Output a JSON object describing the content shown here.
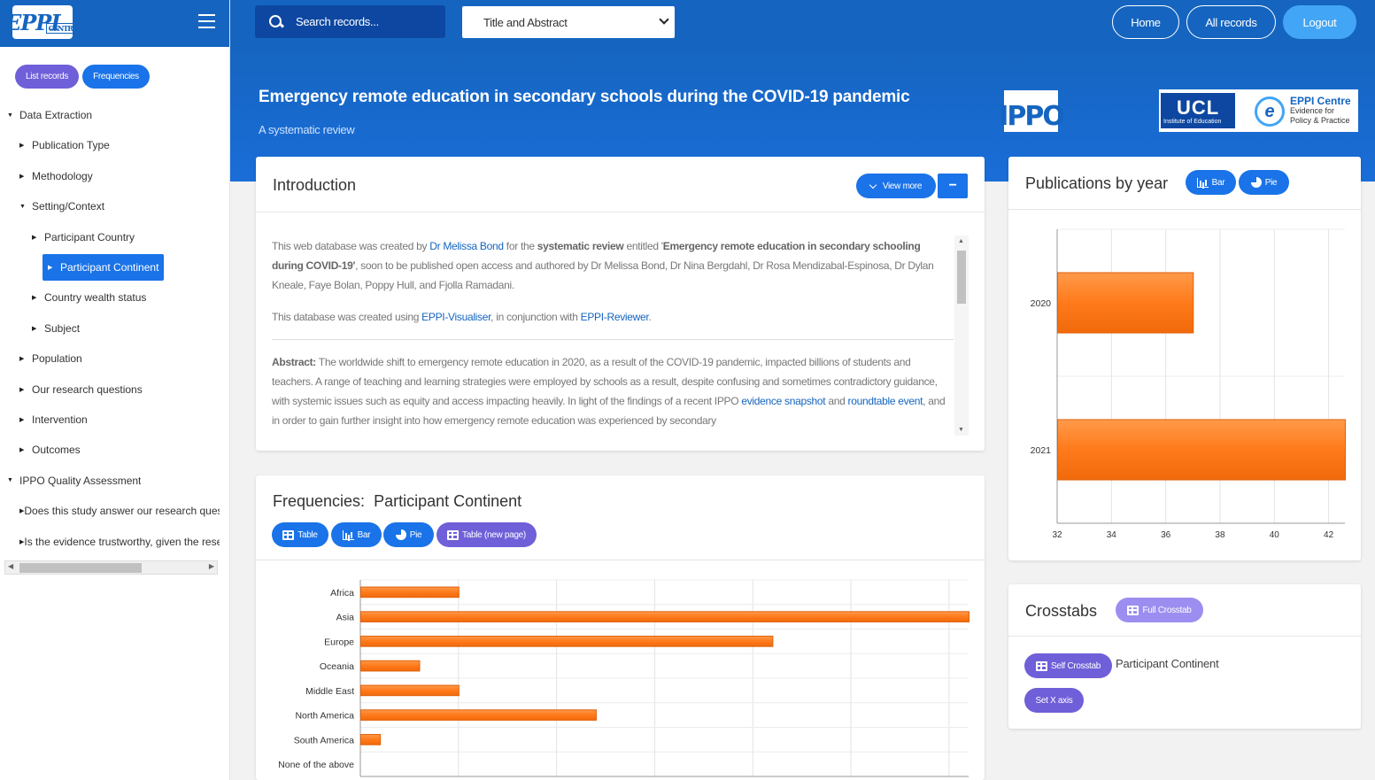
{
  "sidebar": {
    "logo_text": "EPPI",
    "logo_sub": "CENTRE",
    "buttons": {
      "list_records": "List records",
      "frequencies": "Frequencies"
    },
    "tree": [
      {
        "label": "Data Extraction",
        "level": 0
      },
      {
        "label": "Publication Type",
        "level": 1
      },
      {
        "label": "Methodology",
        "level": 1
      },
      {
        "label": "Setting/Context",
        "level": 1
      },
      {
        "label": "Participant Country",
        "level": 2
      },
      {
        "label": "Participant Continent",
        "level": 2,
        "selected": true
      },
      {
        "label": "Country wealth status",
        "level": 2
      },
      {
        "label": "Subject",
        "level": 2
      },
      {
        "label": "Population",
        "level": 1
      },
      {
        "label": "Our research questions",
        "level": 1
      },
      {
        "label": "Intervention",
        "level": 1
      },
      {
        "label": "Outcomes",
        "level": 1
      },
      {
        "label": "IPPO Quality Assessment",
        "level": 0
      },
      {
        "label": "Does this study answer our research questions?",
        "level": 1
      },
      {
        "label": "Is the evidence trustworthy, given the research design?",
        "level": 1
      }
    ]
  },
  "topbar": {
    "search_placeholder": "Search records...",
    "search_scope": "Title and Abstract",
    "nav": {
      "home": "Home",
      "all_records": "All records",
      "logout": "Logout"
    }
  },
  "hero": {
    "title": "Emergency remote education in secondary schools during the COVID-19 pandemic",
    "subtitle": "A systematic review",
    "ippo_logo": "IPPO",
    "ucl_logo": "UCL",
    "ucl_sub": "Institute of Education",
    "eppi_logo": "EPPI Centre",
    "eppi_sub1": "Evidence for",
    "eppi_sub2": "Policy & Practice"
  },
  "intro": {
    "title": "Introduction",
    "view_more": "View more",
    "collapse": "−",
    "p1_a": "This web database was created by ",
    "p1_link": "Dr Melissa Bond",
    "p1_b": " for the ",
    "p1_bold": "systematic review",
    "p1_c": " entitled '",
    "p1_bold2": "Emergency remote education in secondary schooling during COVID-19'",
    "p1_d": ", soon to be published open access and authored by Dr Melissa Bond, Dr Nina Bergdahl, Dr Rosa Mendizabal-Espinosa, Dr Dylan Kneale, Faye Bolan, Poppy Hull, and Fjolla Ramadani.",
    "p2_a": "This database was created using ",
    "p2_link1": "EPPI-Visualiser",
    "p2_b": ", in conjunction with ",
    "p2_link2": "EPPI-Reviewer",
    "p2_c": ".",
    "abs_label": "Abstract:",
    "abs_a": " The worldwide shift to emergency remote education in 2020, as a result of the COVID-19 pandemic, impacted billions of students and teachers. A range of teaching and learning strategies were employed by schools as a result, despite confusing and sometimes contradictory guidance, with systemic issues such as equity and access impacting heavily. In light of the findings of a recent IPPO ",
    "abs_link1": "evidence snapshot",
    "abs_b": " and ",
    "abs_link2": "roundtable event",
    "abs_c": ", and in order to gain further insight into how emergency remote education was experienced by secondary"
  },
  "frequencies": {
    "title_prefix": "Frequencies:",
    "title_value": "Participant Continent",
    "buttons": {
      "table": "Table",
      "bar": "Bar",
      "pie": "Pie",
      "table_new": "Table (new page)"
    }
  },
  "pubs": {
    "title": "Publications by year",
    "buttons": {
      "bar": "Bar",
      "pie": "Pie"
    }
  },
  "crosstabs": {
    "title": "Crosstabs",
    "full_crosstab": "Full Crosstab",
    "self_crosstab": "Self Crosstab",
    "label": "Participant Continent",
    "set_x_axis": "Set X axis"
  },
  "colors": {
    "bar_fill": "#ff7a1a",
    "bar_stroke": "#e0600a",
    "primary": "#1565c0",
    "accent": "#1a73e8",
    "purple": "#6f5fd8"
  },
  "chart_data": [
    {
      "type": "bar",
      "orientation": "horizontal",
      "categories": [
        "Africa",
        "Asia",
        "Europe",
        "Oceania",
        "Middle East",
        "North America",
        "South America",
        "None of the above"
      ],
      "values": [
        5,
        32,
        21,
        3,
        5,
        12,
        1,
        0
      ],
      "xlim": [
        0,
        31
      ],
      "xticks": [
        0,
        5,
        10,
        15,
        20,
        25,
        30
      ],
      "grid": true
    },
    {
      "type": "bar",
      "orientation": "horizontal",
      "categories": [
        "2020",
        "2021"
      ],
      "values": [
        37,
        43
      ],
      "xlim": [
        32,
        42.6
      ],
      "xticks": [
        32,
        34,
        36,
        38,
        40,
        42
      ],
      "grid": true
    }
  ]
}
